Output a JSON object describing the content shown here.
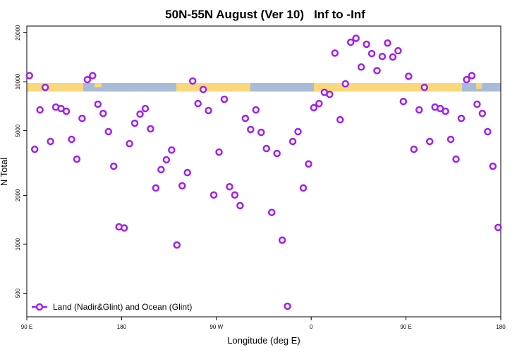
{
  "chart_data": {
    "type": "scatter",
    "title": "50N-55N August (Ver 10)   Inf to -Inf",
    "x_label": "Longitude (deg E)",
    "y_label": "N Total",
    "xlim": [
      90,
      540
    ],
    "xticks": [
      {
        "value": 90,
        "label": "90 E"
      },
      180,
      {
        "value": 270,
        "label": "90 W"
      },
      {
        "value": 360,
        "label": "0"
      },
      {
        "value": 450,
        "label": "90 E"
      },
      {
        "value": 540,
        "label": "180"
      }
    ],
    "ylim": [
      358,
      22000
    ],
    "yticks": [
      500,
      1000,
      2000,
      5000,
      10000,
      20000
    ],
    "log_y": true,
    "legend": "bottom-left",
    "series": [
      {
        "name": "Land (Nadir&Glint) and Ocean (Glint)",
        "color": "#a020f0",
        "x": [
          92.5,
          97.5,
          102.5,
          107.5,
          112.5,
          117.5,
          122.5,
          127.5,
          132.5,
          137.5,
          142.5,
          147.5,
          152.5,
          157.5,
          162.5,
          167.5,
          172.5,
          177.5,
          182.5,
          187.5,
          192.5,
          197.5,
          202.5,
          207.5,
          212.5,
          217.5,
          222.5,
          227.5,
          232.5,
          237.5,
          242.5,
          247.5,
          252.5,
          257.5,
          262.5,
          267.5,
          272.5,
          277.5,
          282.5,
          287.5,
          292.5,
          297.5,
          302.5,
          307.5,
          312.5,
          317.5,
          322.5,
          327.5,
          332.5,
          337.5,
          342.5,
          347.5,
          352.5,
          357.5,
          362.5,
          367.5,
          372.5,
          377.5,
          382.5,
          387.5,
          392.5,
          397.5,
          402.5,
          407.5,
          412.5,
          417.5,
          422.5,
          427.5,
          432.5,
          437.5,
          442.5,
          447.5,
          452.5,
          457.5,
          462.5,
          467.5,
          472.5,
          477.5,
          482.5,
          487.5,
          492.5,
          497.5,
          502.5,
          507.5,
          512.5,
          517.5,
          522.5,
          527.5,
          532.5,
          537.5
        ],
        "values": [
          10900,
          3840,
          6710,
          9230,
          4290,
          6980,
          6840,
          6580,
          4420,
          3340,
          5950,
          10300,
          10900,
          7270,
          6380,
          4930,
          3020,
          1280,
          1260,
          4160,
          5550,
          6320,
          6840,
          5130,
          2220,
          2880,
          3310,
          3800,
          990,
          2290,
          2760,
          10100,
          7340,
          8960,
          6650,
          2010,
          3690,
          7800,
          2260,
          2010,
          1730,
          5950,
          5080,
          6710,
          4880,
          3880,
          1570,
          3620,
          1060,
          416,
          4290,
          4930,
          2220,
          3120,
          6920,
          7340,
          8610,
          8360,
          15000,
          5840,
          9700,
          17500,
          18500,
          12300,
          17000,
          14900,
          11700,
          14300,
          17300,
          14200,
          15500,
          7560,
          10800,
          3840,
          6710,
          9230,
          4290,
          6980,
          6840,
          6580,
          4420,
          3340,
          5950,
          10300,
          10900,
          7270,
          6380,
          4930,
          3020,
          1270
        ]
      }
    ]
  }
}
